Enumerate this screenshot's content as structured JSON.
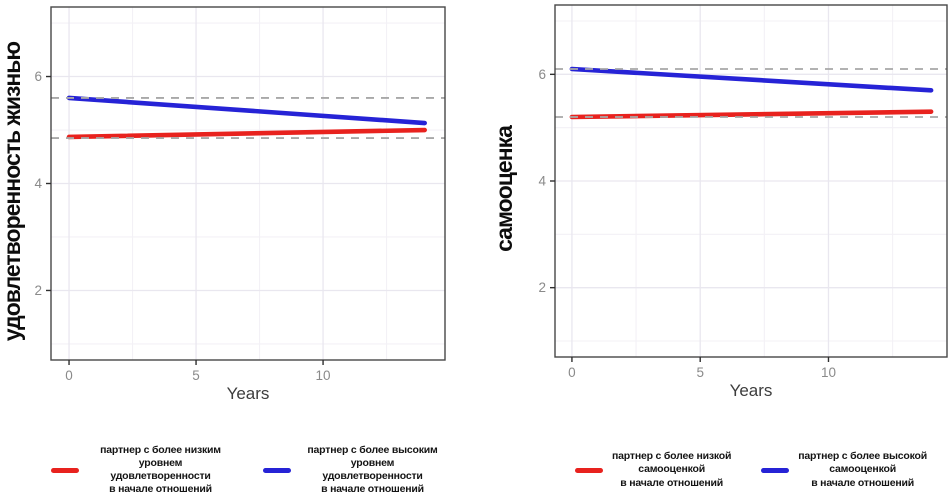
{
  "palette": {
    "red": "#e8221e",
    "blue": "#2623d6",
    "reference_gray": "#a8a8a8",
    "grid_minor": "#f3f1f6",
    "grid_major": "#e9e7ef",
    "panel_border": "#474747",
    "tick_mark": "#2f2f2f",
    "tick_label": "#8a8a8a",
    "axis_title": "#3d3d3d",
    "y_title": "#0d0d0d",
    "background": "#ffffff"
  },
  "chart_data": [
    {
      "type": "line",
      "title": "",
      "y_title": "удовлетворенность жизнью",
      "x_title": "Years",
      "xlim": [
        -0.71,
        14.8
      ],
      "ylim": [
        0.7,
        7.3
      ],
      "x_ticks": [
        0,
        5,
        10
      ],
      "y_ticks": [
        2,
        4,
        6
      ],
      "x_minor_gridlines": [
        2.5,
        7.5,
        12.5
      ],
      "y_minor_gridlines": [
        1,
        3,
        5,
        7
      ],
      "grid": true,
      "reference_lines": [
        {
          "y": 5.6,
          "style": "dashed"
        },
        {
          "y": 4.85,
          "style": "dashed"
        }
      ],
      "series": [
        {
          "key": "lower-partner",
          "name": "партнер с более низким уровнем удовлетворенности в начале отношений",
          "color": "#e8221e",
          "x": [
            0,
            14
          ],
          "y": [
            4.87,
            5.0
          ]
        },
        {
          "key": "higher-partner",
          "name": "партнер с более высоким уровнем удовлетворенности в начале отношений",
          "color": "#2623d6",
          "x": [
            0,
            14
          ],
          "y": [
            5.6,
            5.13
          ]
        }
      ],
      "legend": {
        "position": "bottom",
        "entries": [
          {
            "color": "#e8221e",
            "label_lines": [
              "партнер с более низким",
              "уровнем удовлетворенности",
              "в начале отношений"
            ]
          },
          {
            "color": "#2623d6",
            "label_lines": [
              "партнер с более высоким",
              "уровнем удовлетворенности",
              "в начале отношений"
            ]
          }
        ]
      }
    },
    {
      "type": "line",
      "title": "",
      "y_title": "самооценка",
      "x_title": "Years",
      "xlim": [
        -0.66,
        14.62
      ],
      "ylim": [
        0.7,
        7.3
      ],
      "x_ticks": [
        0,
        5,
        10
      ],
      "y_ticks": [
        2,
        4,
        6
      ],
      "x_minor_gridlines": [
        2.5,
        7.5,
        12.5
      ],
      "y_minor_gridlines": [
        1,
        3,
        5,
        7
      ],
      "grid": true,
      "reference_lines": [
        {
          "y": 6.1,
          "style": "dashed"
        },
        {
          "y": 5.2,
          "style": "dashed"
        }
      ],
      "series": [
        {
          "key": "lower-partner",
          "name": "партнер с более низкой самооценкой в начале отношений",
          "color": "#e8221e",
          "x": [
            0,
            14
          ],
          "y": [
            5.2,
            5.3
          ]
        },
        {
          "key": "higher-partner",
          "name": "партнер с более высокой самооценкой в начале отношений",
          "color": "#2623d6",
          "x": [
            0,
            14
          ],
          "y": [
            6.1,
            5.7
          ]
        }
      ],
      "legend": {
        "position": "bottom",
        "entries": [
          {
            "color": "#e8221e",
            "label_lines": [
              "партнер с более низкой",
              "самооценкой",
              "в начале отношений"
            ]
          },
          {
            "color": "#2623d6",
            "label_lines": [
              "партнер с более высокой",
              "самооценкой",
              "в начале отношений"
            ]
          }
        ]
      }
    }
  ]
}
